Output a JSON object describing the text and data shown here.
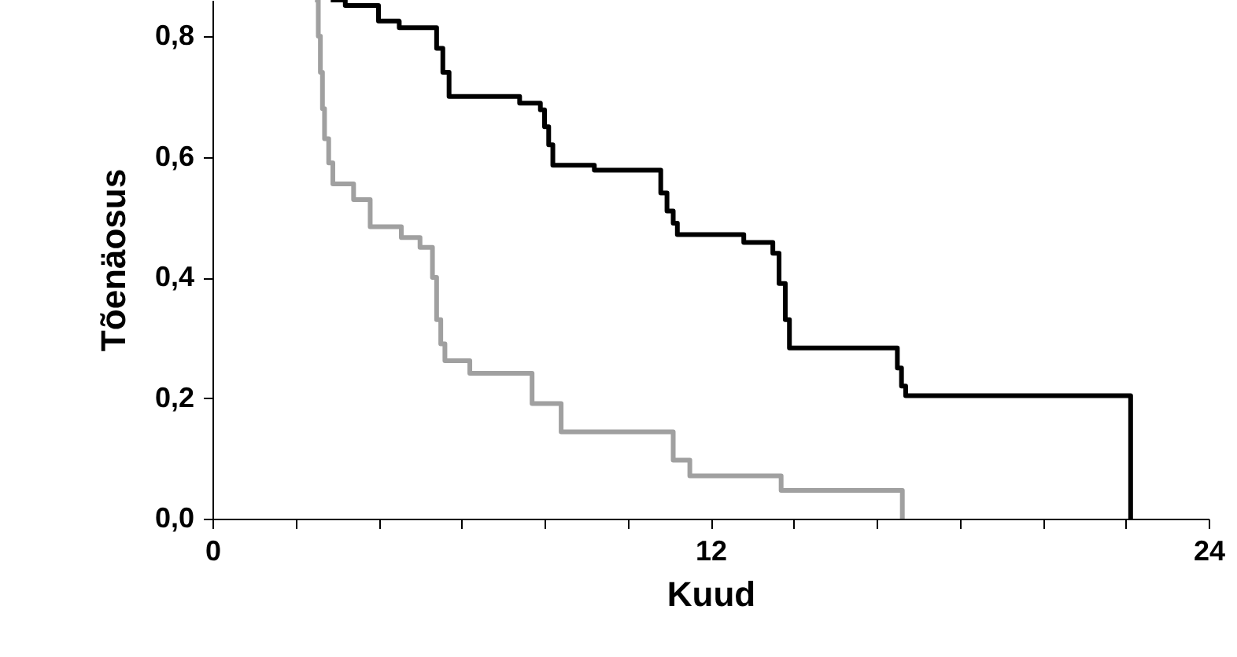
{
  "chart_data": {
    "type": "step",
    "xlabel": "Kuud",
    "ylabel": "Tõenäosus",
    "xlim": [
      0,
      24
    ],
    "ylim": [
      0,
      0.86
    ],
    "xticks": [
      0,
      {
        "value": 2,
        "label": null
      },
      {
        "value": 4,
        "label": null
      },
      {
        "value": 6,
        "label": null
      },
      {
        "value": 8,
        "label": null
      },
      {
        "value": 10,
        "label": null
      },
      12,
      {
        "value": 14,
        "label": null
      },
      {
        "value": 16,
        "label": null
      },
      {
        "value": 18,
        "label": null
      },
      {
        "value": 20,
        "label": null
      },
      {
        "value": 22,
        "label": null
      },
      24
    ],
    "yticks": [
      {
        "value": 0,
        "label": "0,0"
      },
      {
        "value": 0.2,
        "label": "0,2"
      },
      {
        "value": 0.4,
        "label": "0,4"
      },
      {
        "value": 0.6,
        "label": "0,6"
      },
      {
        "value": 0.8,
        "label": "0,8"
      }
    ],
    "grid": false,
    "marker": "none",
    "line_style": "solid",
    "series": [
      {
        "color": "#000000",
        "x": [
          2.85,
          3.2,
          4.0,
          4.5,
          5.4,
          5.55,
          5.7,
          7.4,
          7.9,
          8.0,
          8.1,
          8.2,
          9.2,
          10.8,
          10.95,
          11.1,
          11.2,
          12.8,
          13.5,
          13.65,
          13.8,
          13.9,
          16.5,
          16.6,
          16.7,
          22.1,
          22.12
        ],
        "values": [
          0.86,
          0.851,
          0.825,
          0.814,
          0.78,
          0.74,
          0.7,
          0.689,
          0.678,
          0.65,
          0.62,
          0.586,
          0.578,
          0.54,
          0.51,
          0.49,
          0.471,
          0.458,
          0.44,
          0.39,
          0.33,
          0.283,
          0.25,
          0.22,
          0.204,
          0.204,
          0
        ]
      },
      {
        "color": "#a0a0a0",
        "x": [
          2.47,
          2.55,
          2.6,
          2.65,
          2.7,
          2.8,
          2.9,
          3.4,
          3.8,
          4.55,
          5.0,
          5.3,
          5.4,
          5.5,
          5.6,
          6.2,
          7.7,
          8.4,
          11.1,
          11.5,
          13.7,
          16.6,
          16.62
        ],
        "values": [
          0.86,
          0.8,
          0.74,
          0.68,
          0.63,
          0.59,
          0.555,
          0.529,
          0.484,
          0.466,
          0.45,
          0.4,
          0.33,
          0.29,
          0.262,
          0.241,
          0.191,
          0.144,
          0.097,
          0.071,
          0.047,
          0.047,
          0
        ]
      }
    ]
  }
}
